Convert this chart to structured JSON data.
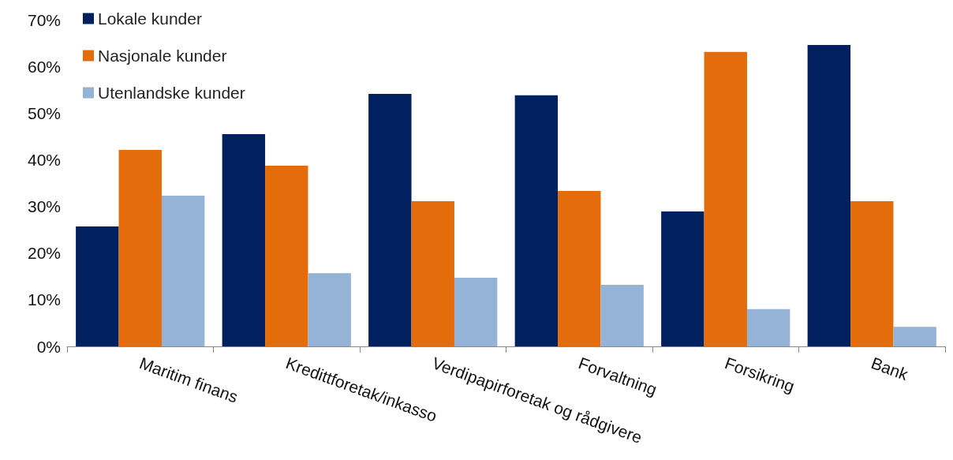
{
  "chart_data": {
    "type": "bar",
    "categories": [
      "Maritim finans",
      "Kredittforetak/inkasso",
      "Verdipapirforetak og rådgivere",
      "Forvaltning",
      "Forsikring",
      "Bank"
    ],
    "series": [
      {
        "name": "Lokale kunder",
        "color": "#002060",
        "values": [
          25.7,
          45.5,
          54.1,
          53.8,
          28.9,
          64.6
        ]
      },
      {
        "name": "Nasjonale kunder",
        "color": "#e46c0a",
        "values": [
          42.1,
          38.7,
          31.1,
          33.3,
          63.1,
          31.1
        ]
      },
      {
        "name": "Utenlandske kunder",
        "color": "#95b3d7",
        "values": [
          32.3,
          15.7,
          14.7,
          13.2,
          8.0,
          4.2
        ]
      }
    ],
    "ylim": [
      0,
      70
    ],
    "yticks": [
      {
        "value": 0,
        "label": "0%"
      },
      {
        "value": 10,
        "label": "10%"
      },
      {
        "value": 20,
        "label": "20%"
      },
      {
        "value": 30,
        "label": "30%"
      },
      {
        "value": 40,
        "label": "40%"
      },
      {
        "value": 50,
        "label": "50%"
      },
      {
        "value": 60,
        "label": "60%"
      },
      {
        "value": 70,
        "label": "70%"
      }
    ],
    "grid": false,
    "legend": "top left"
  }
}
